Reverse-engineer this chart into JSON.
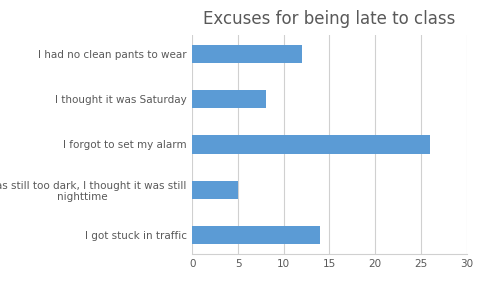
{
  "title": "Excuses for being late to class",
  "categories": [
    "I got stuck in traffic",
    "It was still too dark, I thought it was still\nnighttime",
    "I forgot to set my alarm",
    "I thought it was Saturday",
    "I had no clean pants to wear"
  ],
  "values": [
    14,
    5,
    26,
    8,
    12
  ],
  "bar_color": "#5b9bd5",
  "xlim": [
    0,
    30
  ],
  "xticks": [
    0,
    5,
    10,
    15,
    20,
    25,
    30
  ],
  "title_fontsize": 12,
  "label_fontsize": 7.5,
  "tick_fontsize": 7.5,
  "background_color": "#ffffff",
  "grid_color": "#d0d0d0",
  "text_color": "#595959"
}
